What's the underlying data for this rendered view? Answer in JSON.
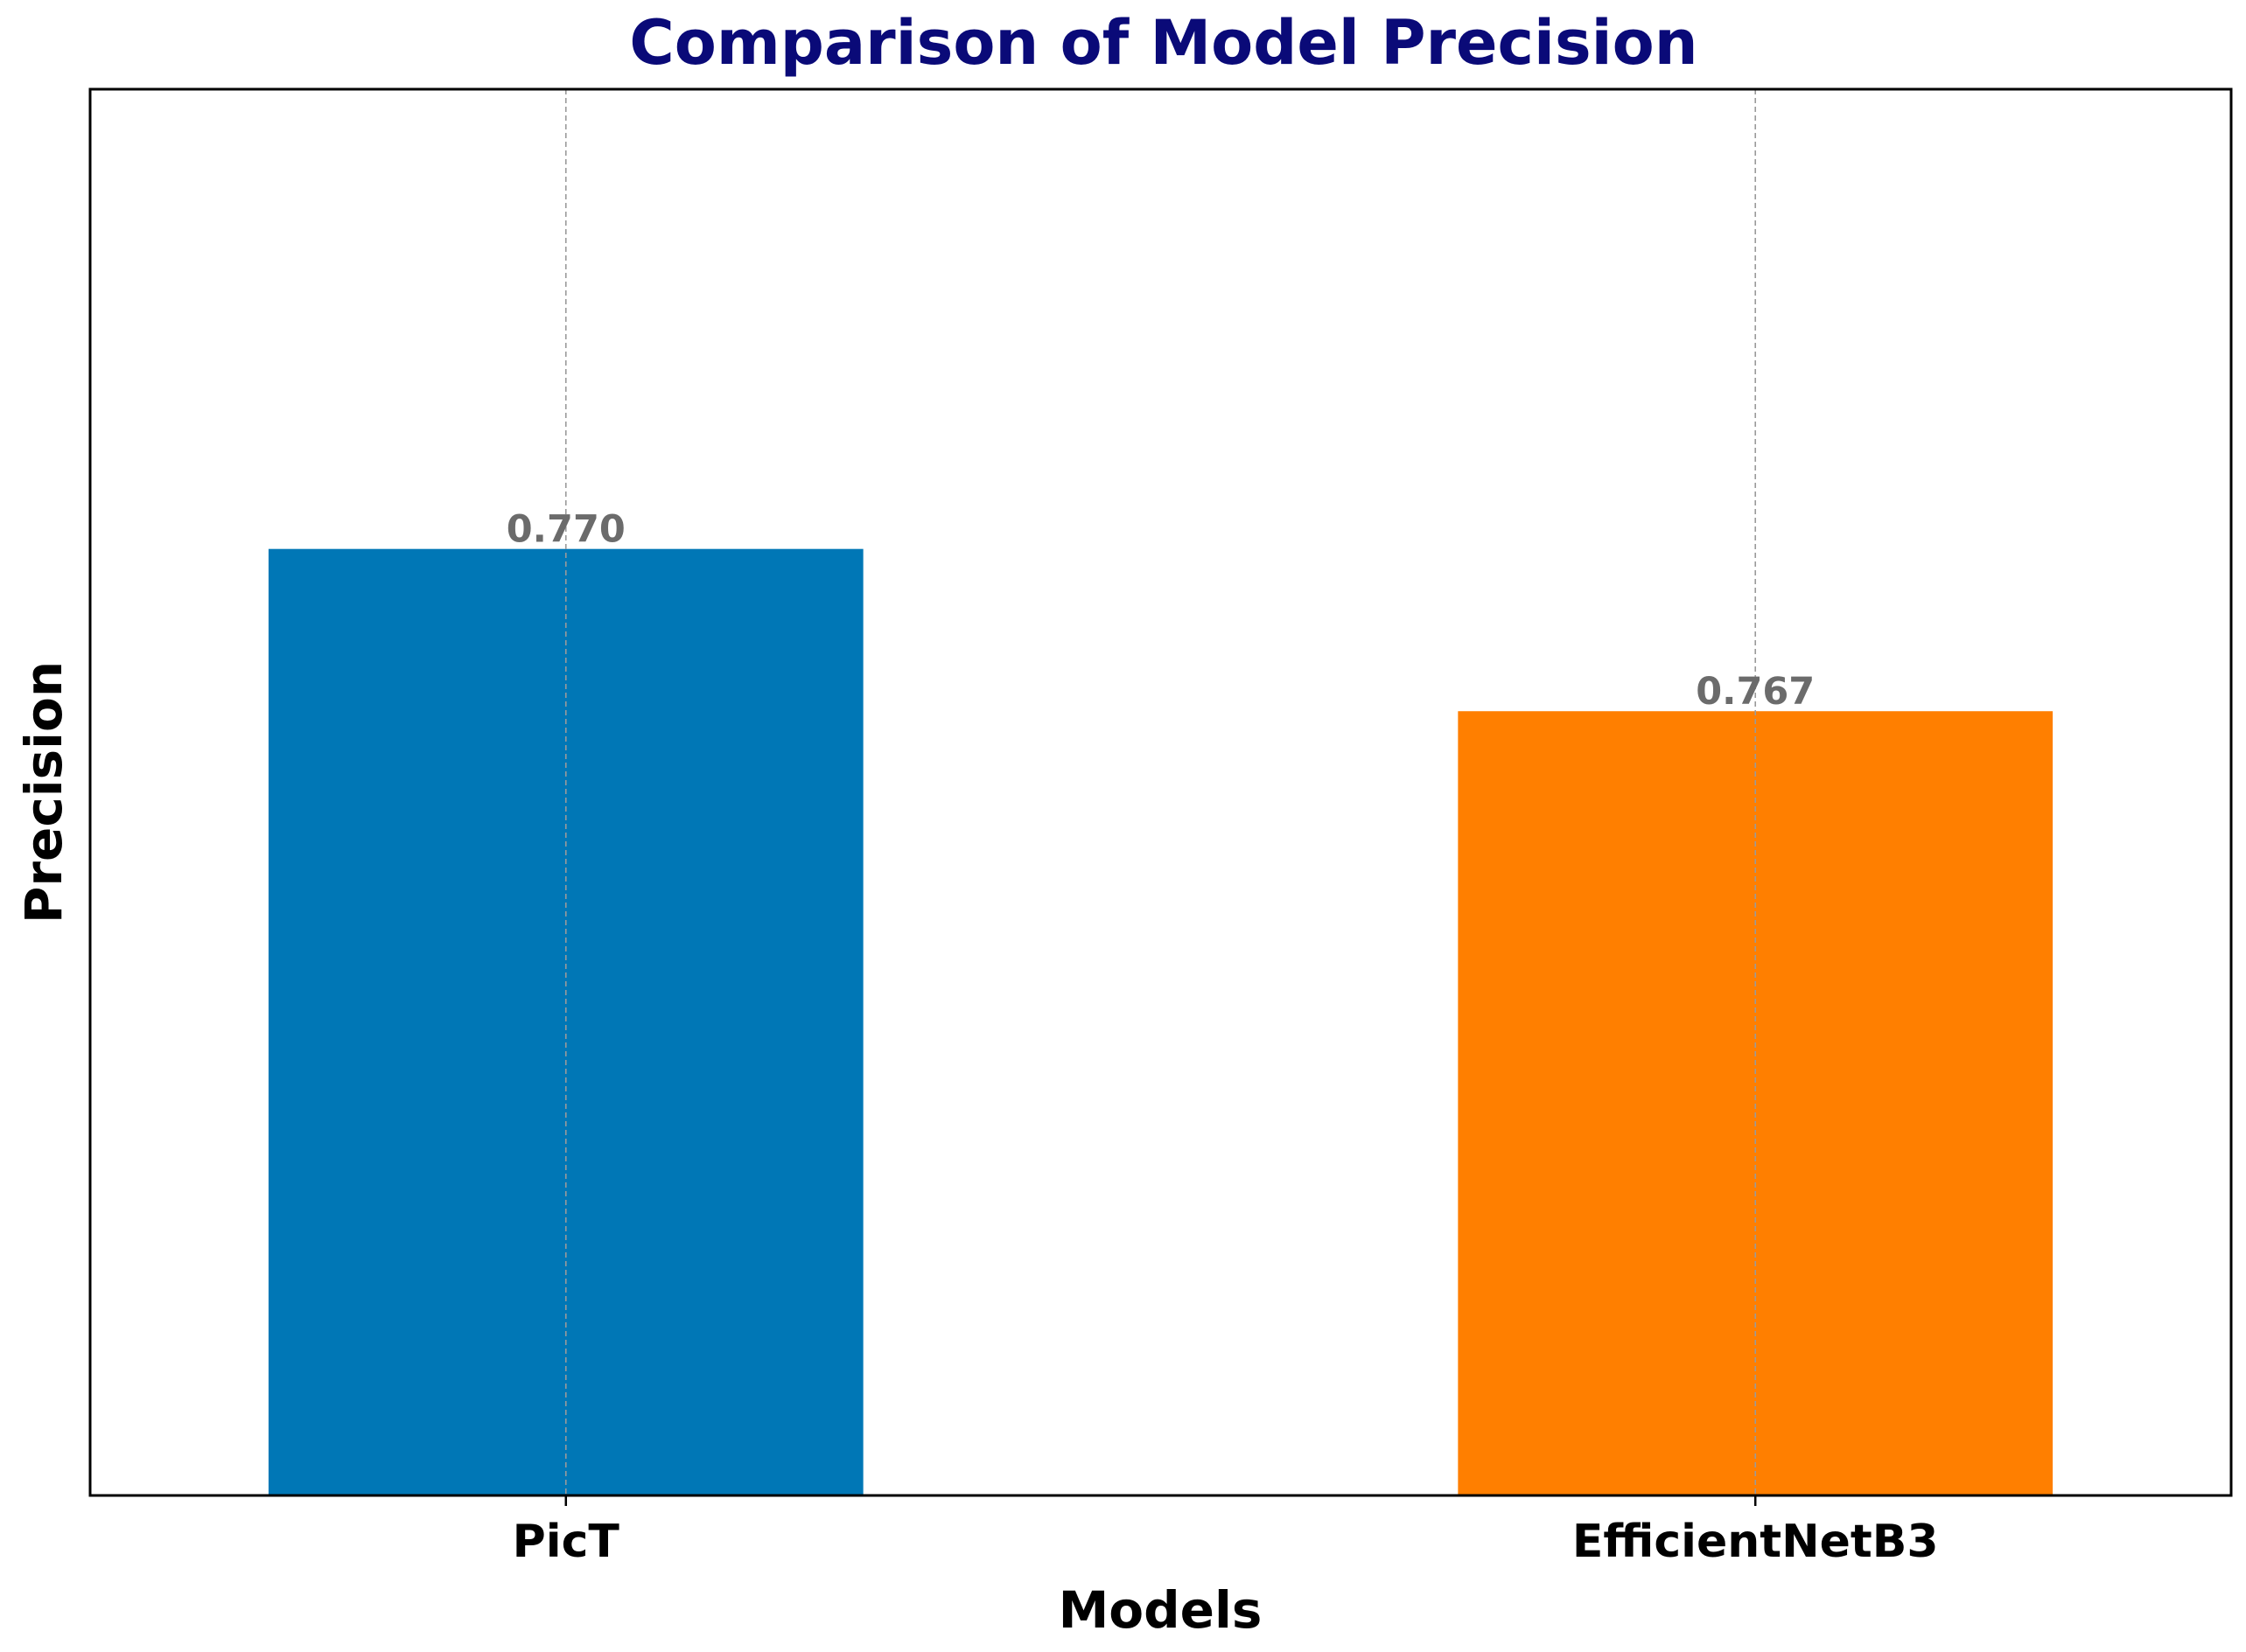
{
  "chart_data": {
    "type": "bar",
    "title": "Comparison of Model Precision",
    "xlabel": "Models",
    "ylabel": "Precision",
    "categories": [
      "PicT",
      "EfficientNetB3"
    ],
    "values": [
      0.77,
      0.767
    ],
    "value_labels": [
      "0.770",
      "0.767"
    ],
    "ylim": [
      0.7525,
      0.7785
    ],
    "yticks_visible": false,
    "grid": "x-dashed",
    "colors": {
      "bars": [
        "#0077b6",
        "#ff7f00"
      ],
      "title": "#0a0a78",
      "value_labels": "#6b6b6b",
      "axis": "#000000",
      "grid": "#9a9a9a"
    }
  }
}
